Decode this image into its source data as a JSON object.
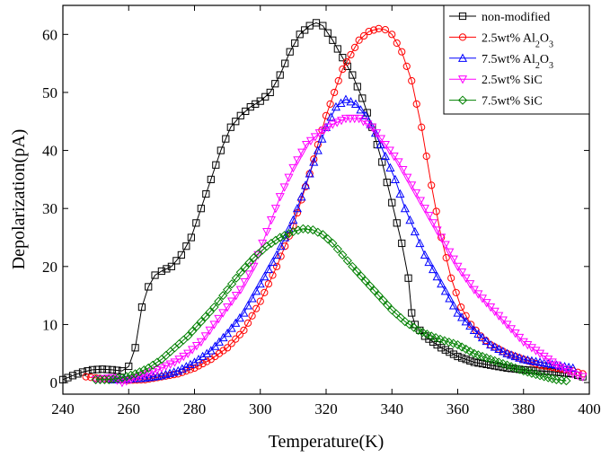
{
  "chart_data": {
    "type": "scatter",
    "xlabel": "Temperature(K)",
    "ylabel": "Depolarization(pA)",
    "xlim": [
      240,
      400
    ],
    "ylim": [
      -2,
      65
    ],
    "xticks": [
      240,
      260,
      280,
      300,
      320,
      340,
      360,
      380,
      400
    ],
    "yticks": [
      0,
      10,
      20,
      30,
      40,
      50,
      60
    ],
    "legend_position": "top-right",
    "series": [
      {
        "name": "non-modified",
        "label_parts": [
          {
            "t": "non-modified"
          }
        ],
        "color": "#000000",
        "marker": "square",
        "x": [
          240,
          243,
          246,
          249,
          252,
          255,
          258,
          260,
          262,
          264,
          266,
          268,
          270,
          273,
          276,
          279,
          282,
          285,
          288,
          291,
          294,
          297,
          300,
          303,
          306,
          309,
          312,
          315,
          317,
          319,
          322,
          325,
          328,
          331,
          334,
          337,
          340,
          343,
          345,
          346,
          347,
          350,
          355,
          360,
          365,
          370,
          375,
          380,
          385,
          390,
          395,
          398
        ],
        "y": [
          0.5,
          1.2,
          1.8,
          2.2,
          2.3,
          2.2,
          2.0,
          2.8,
          6,
          13,
          16.5,
          18.5,
          19.2,
          20,
          22,
          25,
          30,
          35,
          40,
          44,
          46,
          47.5,
          48.5,
          50,
          53,
          57,
          60,
          61.5,
          62,
          61.5,
          59,
          56,
          53,
          49,
          44,
          38,
          31,
          24,
          18,
          12,
          10,
          8,
          6,
          4.5,
          3.5,
          3,
          2.5,
          2.2,
          2,
          1.8,
          1.5,
          1
        ]
      },
      {
        "name": "2.5wt% Al2O3",
        "label_parts": [
          {
            "t": "2.5wt% Al"
          },
          {
            "t": "2",
            "sub": true
          },
          {
            "t": "O"
          },
          {
            "t": "3",
            "sub": true
          }
        ],
        "color": "#ff0000",
        "marker": "circle",
        "x": [
          247,
          250,
          255,
          260,
          265,
          270,
          275,
          280,
          285,
          290,
          295,
          300,
          305,
          310,
          315,
          320,
          325,
          330,
          333,
          336,
          338,
          340,
          343,
          346,
          349,
          352,
          355,
          358,
          361,
          364,
          367,
          370,
          375,
          380,
          385,
          390,
          395,
          398
        ],
        "y": [
          1,
          0.8,
          0.5,
          0.4,
          0.5,
          1,
          1.5,
          2.5,
          4,
          6,
          9,
          14,
          20,
          27,
          36,
          46,
          54,
          59,
          60.5,
          61,
          60.8,
          60,
          57,
          52,
          44,
          34,
          25,
          18,
          13,
          10,
          8,
          6.5,
          5,
          4,
          3,
          2.5,
          2,
          1.5
        ]
      },
      {
        "name": "7.5wt% Al2O3",
        "label_parts": [
          {
            "t": "7.5wt% Al"
          },
          {
            "t": "2",
            "sub": true
          },
          {
            "t": "O"
          },
          {
            "t": "3",
            "sub": true
          }
        ],
        "color": "#0000ff",
        "marker": "triangle-up",
        "x": [
          255,
          260,
          265,
          270,
          275,
          280,
          285,
          290,
          295,
          300,
          305,
          310,
          315,
          320,
          323,
          326,
          329,
          332,
          335,
          338,
          341,
          344,
          347,
          350,
          355,
          360,
          365,
          370,
          375,
          380,
          385,
          390,
          395
        ],
        "y": [
          0.5,
          0.6,
          0.8,
          1.2,
          2,
          3.5,
          5.5,
          8.5,
          12,
          17,
          22,
          28,
          36,
          44,
          47.5,
          48.8,
          48,
          46,
          43,
          39,
          35,
          30,
          26,
          22,
          17,
          12,
          9,
          6.5,
          5,
          4,
          3.5,
          3,
          2.5
        ]
      },
      {
        "name": "2.5wt% SiC",
        "label_parts": [
          {
            "t": "2.5wt% SiC"
          }
        ],
        "color": "#ff00ff",
        "marker": "triangle-down",
        "x": [
          250,
          255,
          258,
          262,
          266,
          270,
          274,
          278,
          282,
          286,
          290,
          294,
          298,
          302,
          306,
          310,
          314,
          318,
          322,
          326,
          330,
          334,
          338,
          342,
          346,
          350,
          355,
          360,
          365,
          370,
          375,
          380,
          385,
          390,
          395,
          398
        ],
        "y": [
          0.5,
          0.8,
          0,
          0.8,
          1.5,
          2.5,
          3.5,
          5,
          7,
          10,
          13,
          16,
          20,
          26,
          32,
          37,
          41,
          43,
          44.5,
          45.5,
          45.5,
          44,
          41,
          38,
          34,
          30,
          25,
          20,
          16,
          13,
          10,
          7,
          5,
          3,
          1.5,
          1
        ]
      },
      {
        "name": "7.5wt% SiC",
        "label_parts": [
          {
            "t": "7.5wt% SiC"
          }
        ],
        "color": "#008000",
        "marker": "diamond",
        "x": [
          250,
          254,
          258,
          262,
          266,
          270,
          274,
          278,
          282,
          286,
          290,
          294,
          298,
          302,
          306,
          310,
          313,
          316,
          319,
          322,
          325,
          328,
          332,
          336,
          340,
          344,
          348,
          352,
          356,
          360,
          365,
          370,
          375,
          380,
          385,
          390,
          393
        ],
        "y": [
          0.5,
          0.5,
          0.8,
          1.5,
          2.5,
          4,
          6,
          8,
          10.5,
          13,
          16,
          19,
          21.5,
          23.5,
          25,
          26,
          26.5,
          26.3,
          25.5,
          24,
          22,
          20,
          17.5,
          15,
          12.5,
          10.5,
          9,
          8,
          7.2,
          6.5,
          5,
          4,
          3,
          2,
          1.2,
          0.5,
          0.3
        ]
      }
    ]
  }
}
